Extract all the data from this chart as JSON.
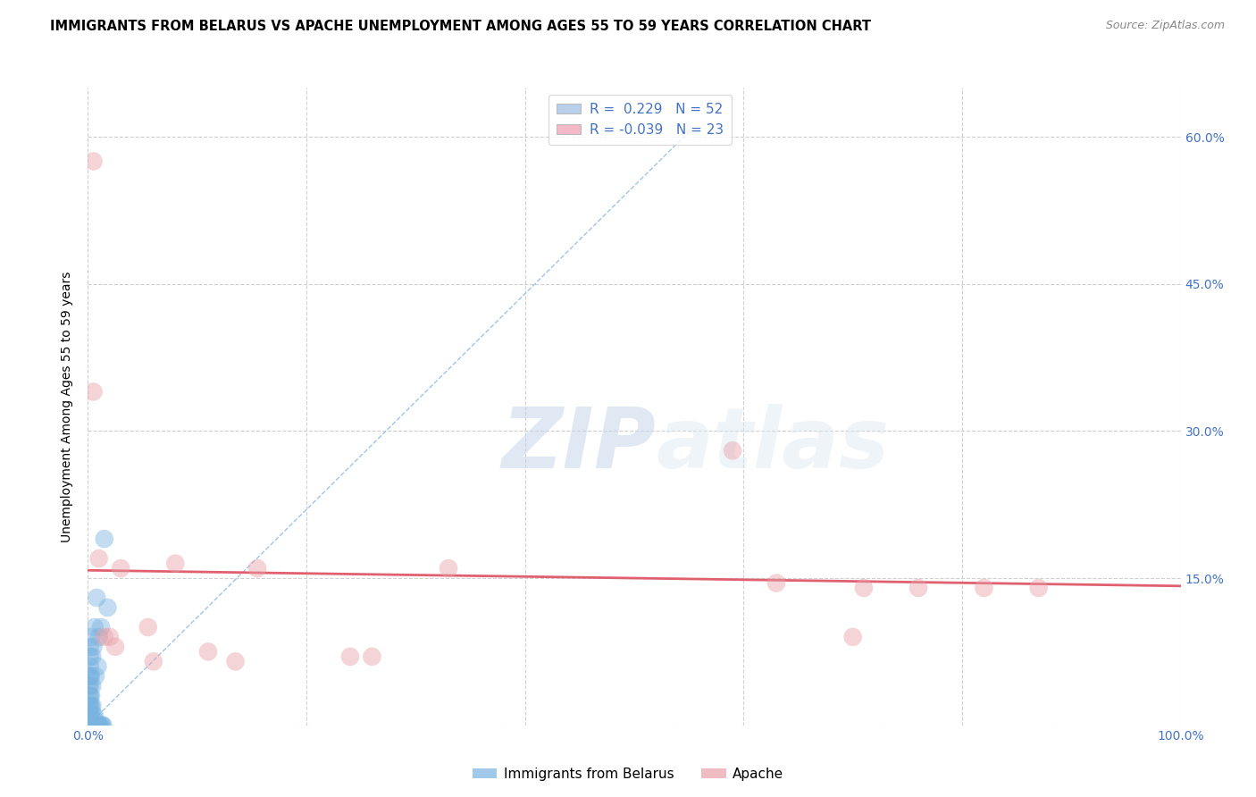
{
  "title": "IMMIGRANTS FROM BELARUS VS APACHE UNEMPLOYMENT AMONG AGES 55 TO 59 YEARS CORRELATION CHART",
  "source": "Source: ZipAtlas.com",
  "tick_color": "#4472c4",
  "ylabel": "Unemployment Among Ages 55 to 59 years",
  "xlim": [
    0.0,
    1.0
  ],
  "ylim": [
    0.0,
    0.65
  ],
  "xticks": [
    0.0,
    0.2,
    0.4,
    0.6,
    0.8,
    1.0
  ],
  "xtick_labels": [
    "0.0%",
    "",
    "",
    "",
    "",
    "100.0%"
  ],
  "yticks": [
    0.0,
    0.15,
    0.3,
    0.45,
    0.6
  ],
  "ytick_labels": [
    "",
    "15.0%",
    "30.0%",
    "45.0%",
    "60.0%"
  ],
  "legend_r1": "R =  0.229   N = 52",
  "legend_r2": "R = -0.039   N = 23",
  "legend_color1": "#b8d0ea",
  "legend_color2": "#f4b8c8",
  "watermark_zip": "ZIP",
  "watermark_atlas": "atlas",
  "blue_scatter_x": [
    0.001,
    0.001,
    0.001,
    0.001,
    0.001,
    0.001,
    0.001,
    0.001,
    0.001,
    0.001,
    0.001,
    0.002,
    0.002,
    0.002,
    0.002,
    0.002,
    0.002,
    0.002,
    0.002,
    0.002,
    0.002,
    0.003,
    0.003,
    0.003,
    0.003,
    0.003,
    0.003,
    0.004,
    0.004,
    0.004,
    0.004,
    0.005,
    0.005,
    0.005,
    0.006,
    0.006,
    0.006,
    0.007,
    0.007,
    0.008,
    0.008,
    0.009,
    0.009,
    0.01,
    0.01,
    0.011,
    0.012,
    0.012,
    0.013,
    0.014,
    0.015,
    0.018
  ],
  "blue_scatter_y": [
    0.0,
    0.0,
    0.0,
    0.0,
    0.01,
    0.01,
    0.02,
    0.02,
    0.03,
    0.04,
    0.05,
    0.0,
    0.0,
    0.01,
    0.02,
    0.03,
    0.04,
    0.05,
    0.06,
    0.07,
    0.08,
    0.0,
    0.01,
    0.02,
    0.03,
    0.05,
    0.09,
    0.0,
    0.02,
    0.04,
    0.07,
    0.0,
    0.01,
    0.08,
    0.0,
    0.01,
    0.1,
    0.0,
    0.05,
    0.0,
    0.13,
    0.0,
    0.06,
    0.0,
    0.09,
    0.0,
    0.0,
    0.1,
    0.0,
    0.0,
    0.19,
    0.12
  ],
  "pink_scatter_x": [
    0.005,
    0.005,
    0.01,
    0.015,
    0.02,
    0.025,
    0.03,
    0.055,
    0.06,
    0.08,
    0.11,
    0.135,
    0.155,
    0.24,
    0.26,
    0.33,
    0.59,
    0.63,
    0.7,
    0.71,
    0.76,
    0.82,
    0.87
  ],
  "pink_scatter_y": [
    0.575,
    0.34,
    0.17,
    0.09,
    0.09,
    0.08,
    0.16,
    0.1,
    0.065,
    0.165,
    0.075,
    0.065,
    0.16,
    0.07,
    0.07,
    0.16,
    0.28,
    0.145,
    0.09,
    0.14,
    0.14,
    0.14,
    0.14
  ],
  "blue_line_x": [
    0.0,
    0.55
  ],
  "blue_line_y": [
    0.0,
    0.605
  ],
  "pink_line_x": [
    0.0,
    1.0
  ],
  "pink_line_y": [
    0.158,
    0.142
  ],
  "scatter_size": 220,
  "scatter_alpha": 0.45,
  "blue_color": "#7ab3e0",
  "pink_color": "#e8a0a8",
  "line_blue_color": "#9fc5e8",
  "line_pink_color": "#e06070",
  "grid_color": "#d0d0d0",
  "bg_color": "#ffffff",
  "title_fontsize": 10.5,
  "source_fontsize": 9,
  "axis_label_fontsize": 10,
  "tick_fontsize": 10,
  "legend_fontsize": 11
}
